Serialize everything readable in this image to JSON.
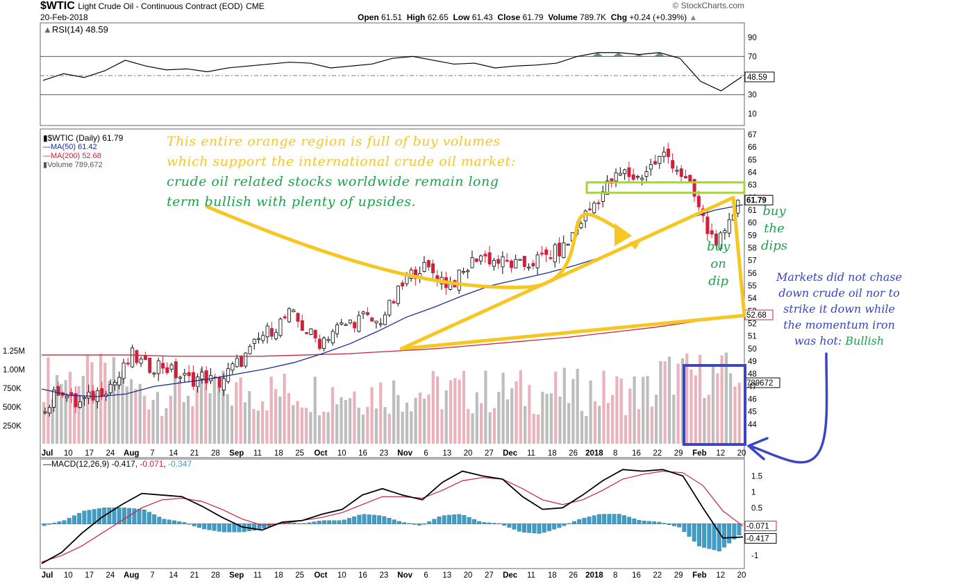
{
  "header": {
    "symbol": "$WTIC",
    "description": "Light Crude Oil - Continuous Contract (EOD)",
    "exchange": "CME",
    "date": "20-Feb-2018",
    "open_label": "Open",
    "open": "61.51",
    "high_label": "High",
    "high": "62.65",
    "low_label": "Low",
    "low": "61.43",
    "close_label": "Close",
    "close": "61.79",
    "volume_label": "Volume",
    "volume": "789.7K",
    "chg_label": "Chg",
    "chg": "+0.24 (+0.39%)",
    "brand": "© StockCharts.com"
  },
  "legends": {
    "rsi": "RSI(14) 48.59",
    "main": "$WTIC (Daily) 61.79",
    "ma50": "MA(50) 61.42",
    "ma200": "MA(200) 52.68",
    "volume": "Volume 789,672",
    "macd_prefix": "MACD(12,26,9)",
    "macd_val": "-0.417",
    "macd_signal": "-0.071",
    "macd_hist": "-0.347"
  },
  "annotations": {
    "orange_line1": "This entire orange region is full of buy volumes",
    "orange_line2": "which support the international crude oil market:",
    "green_line3": "crude oil related stocks worldwide remain long",
    "green_line4": "term bullish with plenty of upsides.",
    "buy_on_dip_1": "buy",
    "buy_on_dip_2": "on",
    "buy_on_dip_3": "dip",
    "buy_dips_1": "buy",
    "buy_dips_2": "the",
    "buy_dips_3": "dips",
    "blue_line1": "Markets did not chase",
    "blue_line2": "down crude oil nor to",
    "blue_line3": "strike it down while",
    "blue_line4": "the momentum iron",
    "blue_line5_a": "was hot: ",
    "blue_line5_b": "Bullish"
  },
  "colors": {
    "up": "#000000",
    "down": "#d0203a",
    "ma50": "#1a2a99",
    "ma200": "#d0203a",
    "orange": "#f6c623",
    "green_box": "#a6d33a",
    "blue_box": "#3a46c8",
    "rsi_fill": "#4d7a52",
    "hist": "#3f9ec8",
    "vol_up": "#bdbdbd",
    "vol_down": "#eab3bb"
  },
  "chart_data": [
    {
      "type": "line",
      "name": "RSI(14)",
      "yticks": [
        90,
        70,
        50,
        30,
        10
      ],
      "ylim": [
        0,
        100
      ],
      "overbought": 70,
      "oversold": 30,
      "midline": 50,
      "last_value": "48.59",
      "x": [
        "Jul 3",
        "Jul 10",
        "Jul 17",
        "Jul 24",
        "Aug 1",
        "Aug 7",
        "Aug 14",
        "Aug 21",
        "Aug 28",
        "Sep 1",
        "Sep 11",
        "Sep 18",
        "Sep 25",
        "Oct 2",
        "Oct 10",
        "Oct 16",
        "Oct 23",
        "Nov 1",
        "Nov 6",
        "Nov 13",
        "Nov 20",
        "Nov 27",
        "Dec 1",
        "Dec 11",
        "Dec 18",
        "Dec 26",
        "Jan 2",
        "Jan 8",
        "Jan 16",
        "Jan 22",
        "Jan 29",
        "Feb 1",
        "Feb 5",
        "Feb 12",
        "Feb 20"
      ],
      "values": [
        45,
        52,
        48,
        55,
        66,
        60,
        56,
        57,
        54,
        58,
        60,
        62,
        64,
        63,
        58,
        60,
        62,
        68,
        70,
        66,
        62,
        63,
        58,
        60,
        61,
        63,
        70,
        74,
        74,
        72,
        74,
        68,
        44,
        34,
        48.59
      ]
    },
    {
      "type": "candlestick",
      "name": "$WTIC (Daily)",
      "ylim": [
        43,
        67
      ],
      "yticks": [
        67,
        66,
        65,
        64,
        63,
        62,
        61,
        60,
        59,
        58,
        57,
        56,
        55,
        54,
        53,
        52,
        51,
        50,
        49,
        48,
        47,
        46,
        45,
        44
      ],
      "last_price": "61.79",
      "ma50_last": "61.42",
      "ma200_last": "52.68",
      "x_labels": [
        "Jul",
        "10",
        "17",
        "24",
        "Aug",
        "7",
        "14",
        "21",
        "28",
        "Sep",
        "11",
        "18",
        "25",
        "Oct",
        "10",
        "16",
        "23",
        "Nov",
        "6",
        "13",
        "20",
        "27",
        "Dec",
        "11",
        "18",
        "26",
        "2018",
        "8",
        "16",
        "22",
        "29",
        "Feb",
        "12",
        "20"
      ],
      "bold_labels": [
        "Jul",
        "Aug",
        "Sep",
        "Oct",
        "Nov",
        "Dec",
        "2018",
        "Feb"
      ],
      "close_path": [
        45.0,
        47.0,
        45.5,
        46.0,
        46.8,
        47.5,
        49.5,
        48.5,
        48.8,
        48.0,
        47.5,
        47.8,
        47.2,
        48.5,
        49.5,
        51.0,
        51.8,
        52.8,
        51.5,
        50.5,
        51.5,
        52.0,
        52.5,
        52.0,
        53.5,
        55.5,
        56.5,
        56.0,
        55.0,
        56.0,
        57.5,
        57.0,
        56.8,
        56.5,
        57.0,
        57.5,
        58.0,
        60.0,
        61.5,
        63.0,
        64.0,
        63.5,
        64.5,
        65.5,
        64.0,
        62.0,
        59.0,
        58.5,
        61.79
      ],
      "ma50_path": [
        46.8,
        46.3,
        46.2,
        46.4,
        47.0,
        47.3,
        47.6,
        48.0,
        48.4,
        48.9,
        49.6,
        50.4,
        51.4,
        52.5,
        53.3,
        54.2,
        55.0,
        55.5,
        56.0,
        56.6,
        57.3,
        58.2,
        59.2,
        60.3,
        61.0,
        61.42
      ],
      "ma200_path": [
        49.5,
        49.5,
        49.5,
        49.4,
        49.4,
        49.4,
        49.5,
        49.6,
        49.8,
        50.0,
        50.3,
        50.6,
        50.9,
        51.3,
        51.7,
        52.2,
        52.68
      ],
      "volume_ticks": [
        "1.25M",
        "1.00M",
        "750K",
        "500K",
        "250K"
      ],
      "volume_last": "789672"
    },
    {
      "type": "line",
      "name": "MACD(12,26,9)",
      "yticks": [
        1.5,
        1.0,
        0.5,
        -1.0
      ],
      "ylim": [
        -1.3,
        1.9
      ],
      "macd": [
        -1.25,
        -0.9,
        -0.3,
        0.2,
        0.6,
        0.95,
        0.9,
        0.85,
        0.55,
        0.2,
        -0.1,
        -0.2,
        0.05,
        0.1,
        0.3,
        0.45,
        0.9,
        1.1,
        0.9,
        0.75,
        1.3,
        1.65,
        1.5,
        1.4,
        0.85,
        0.45,
        0.5,
        0.9,
        1.35,
        1.7,
        1.65,
        1.7,
        1.5,
        0.5,
        -0.45,
        -0.417
      ],
      "signal": [
        -1.2,
        -1.0,
        -0.7,
        -0.3,
        0.1,
        0.5,
        0.75,
        0.8,
        0.7,
        0.45,
        0.15,
        -0.05,
        0.0,
        0.1,
        0.2,
        0.35,
        0.6,
        0.85,
        0.85,
        0.8,
        1.05,
        1.35,
        1.45,
        1.4,
        1.1,
        0.75,
        0.6,
        0.75,
        1.05,
        1.4,
        1.55,
        1.65,
        1.6,
        1.2,
        0.4,
        -0.071
      ],
      "last_macd": "-0.417",
      "last_signal": "-0.071"
    }
  ]
}
